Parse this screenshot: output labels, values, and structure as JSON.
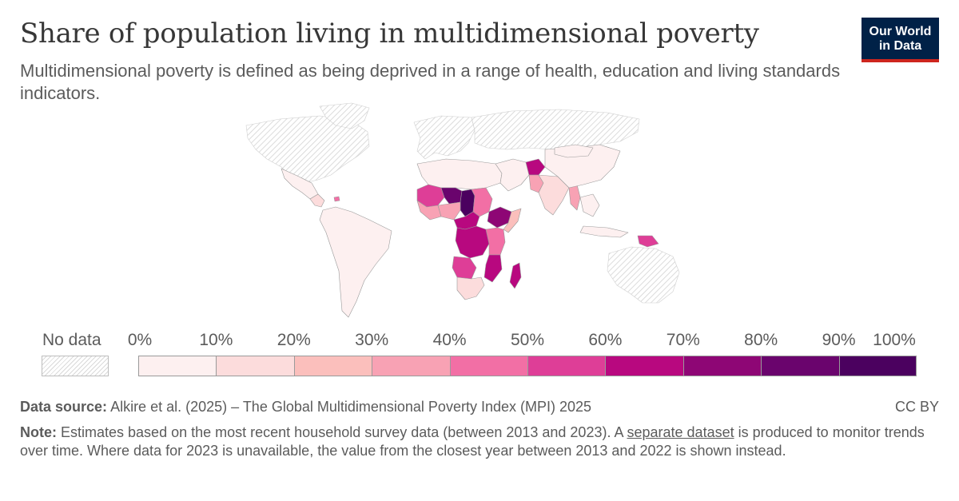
{
  "title": "Share of population living in multidimensional poverty",
  "subtitle": "Multidimensional poverty is defined as being deprived in a range of health, education and living standards indicators.",
  "logo": {
    "line1": "Our World",
    "line2": "in Data",
    "bg_color": "#002147",
    "accent_color": "#ce261e"
  },
  "legend": {
    "no_data_label": "No data",
    "ticks": [
      "0%",
      "10%",
      "20%",
      "30%",
      "40%",
      "50%",
      "60%",
      "70%",
      "80%",
      "90%",
      "100%"
    ],
    "bins": [
      {
        "from": 0,
        "to": 10,
        "color": "#fdf0f0"
      },
      {
        "from": 10,
        "to": 20,
        "color": "#fcdcdc"
      },
      {
        "from": 20,
        "to": 30,
        "color": "#fbbfbc"
      },
      {
        "from": 30,
        "to": 40,
        "color": "#f8a2b4"
      },
      {
        "from": 40,
        "to": 50,
        "color": "#f26fa5"
      },
      {
        "from": 50,
        "to": 60,
        "color": "#de3e97"
      },
      {
        "from": 60,
        "to": 70,
        "color": "#b8087f"
      },
      {
        "from": 70,
        "to": 80,
        "color": "#8e0675"
      },
      {
        "from": 80,
        "to": 90,
        "color": "#6a046d"
      },
      {
        "from": 90,
        "to": 100,
        "color": "#4b015f"
      }
    ]
  },
  "footer": {
    "source_label": "Data source:",
    "source_text": "Alkire et al. (2025) – The Global Multidimensional Poverty Index (MPI) 2025",
    "license": "CC BY",
    "note_label": "Note:",
    "note_before_link": "Estimates based on the most recent household survey data (between 2013 and 2023). A",
    "note_link": "separate dataset",
    "note_after_link": "is produced to monitor trends over time. Where data for 2023 is unavailable, the value from the closest year between 2013 and 2022 is shown instead."
  },
  "map_regions": [
    {
      "name": "North America",
      "status": "no data"
    },
    {
      "name": "Greenland",
      "status": "no data"
    },
    {
      "name": "Europe",
      "status": "no data"
    },
    {
      "name": "Russia",
      "status": "no data"
    },
    {
      "name": "Australia",
      "status": "no data"
    },
    {
      "name": "Mexico",
      "bin": 0
    },
    {
      "name": "Central America",
      "bin": 1
    },
    {
      "name": "Haiti",
      "bin": 4
    },
    {
      "name": "South America",
      "bin": 0
    },
    {
      "name": "North Africa",
      "bin": 0
    },
    {
      "name": "Sahel West",
      "bin": 5
    },
    {
      "name": "Niger",
      "bin": 8
    },
    {
      "name": "Chad",
      "bin": 9
    },
    {
      "name": "West Africa Coast",
      "bin": 3
    },
    {
      "name": "Nigeria",
      "bin": 3
    },
    {
      "name": "Sudan",
      "bin": 4
    },
    {
      "name": "Ethiopia",
      "bin": 7
    },
    {
      "name": "Somalia",
      "bin": 2
    },
    {
      "name": "Central Africa",
      "bin": 6
    },
    {
      "name": "DR Congo",
      "bin": 6
    },
    {
      "name": "East Africa",
      "bin": 4
    },
    {
      "name": "Mozambique",
      "bin": 6
    },
    {
      "name": "Madagascar",
      "bin": 6
    },
    {
      "name": "Angola",
      "bin": 5
    },
    {
      "name": "Southern Africa",
      "bin": 1
    },
    {
      "name": "Middle East",
      "bin": 0
    },
    {
      "name": "Afghanistan",
      "bin": 6
    },
    {
      "name": "Pakistan",
      "bin": 3
    },
    {
      "name": "India",
      "bin": 1
    },
    {
      "name": "Myanmar",
      "bin": 3
    },
    {
      "name": "China",
      "bin": 0
    },
    {
      "name": "Mongolia",
      "bin": 0
    },
    {
      "name": "Southeast Asia",
      "bin": 0
    },
    {
      "name": "Indonesia",
      "bin": 0
    },
    {
      "name": "Papua New Guinea",
      "bin": 5
    }
  ]
}
